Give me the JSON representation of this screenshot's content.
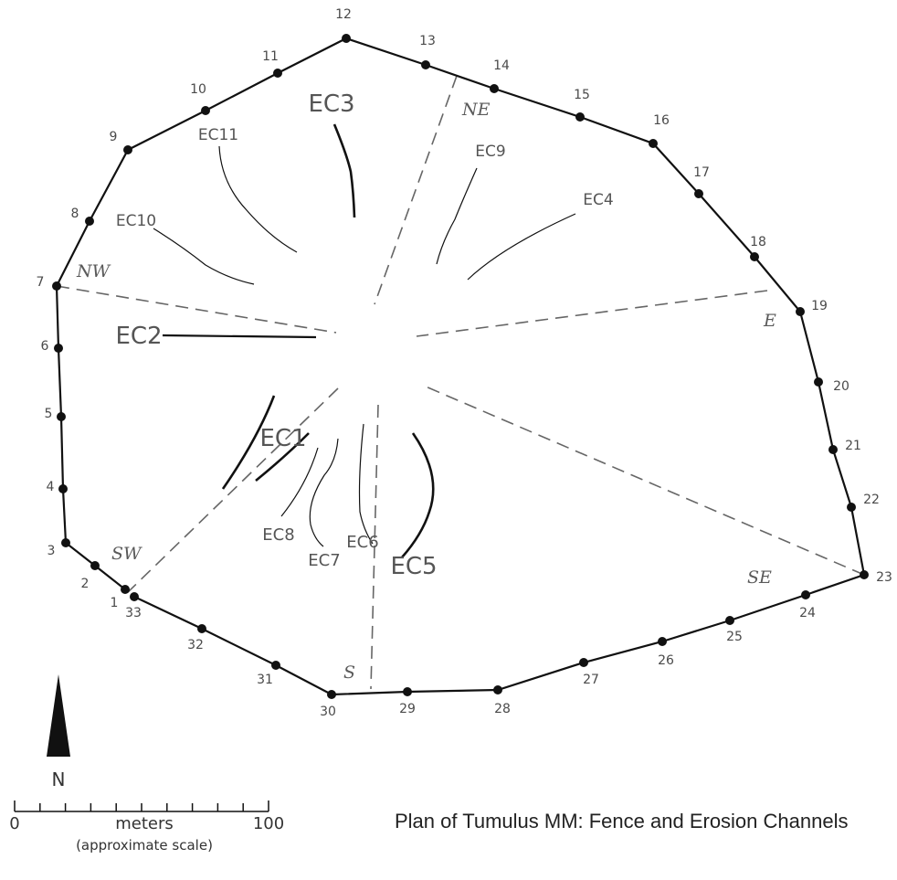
{
  "title": "Plan of Tumulus MM: Fence and Erosion Channels",
  "north_label": "N",
  "scale": {
    "start": "0",
    "end": "100",
    "unit": "meters",
    "note": "(approximate scale)"
  },
  "fence_posts": [
    "1",
    "2",
    "3",
    "4",
    "5",
    "6",
    "7",
    "8",
    "9",
    "10",
    "11",
    "12",
    "13",
    "14",
    "15",
    "16",
    "17",
    "18",
    "19",
    "20",
    "21",
    "22",
    "23",
    "24",
    "25",
    "26",
    "27",
    "28",
    "29",
    "30",
    "31",
    "32",
    "33"
  ],
  "sectors": [
    "NE",
    "E",
    "SE",
    "S",
    "SW",
    "NW"
  ],
  "erosion_channels": [
    "EC1",
    "EC2",
    "EC3",
    "EC4",
    "EC5",
    "EC6",
    "EC7",
    "EC8",
    "EC9",
    "EC10",
    "EC11"
  ],
  "colors": {
    "fence": "#111111",
    "sector_line": "#666666",
    "label": "#555555"
  }
}
